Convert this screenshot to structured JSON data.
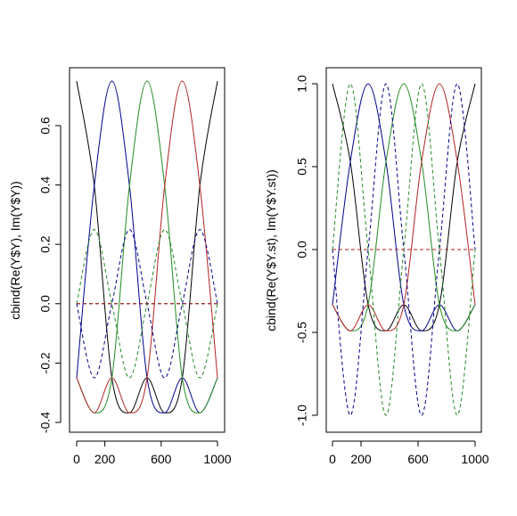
{
  "chart_data": [
    {
      "type": "line",
      "ylabel": "cbind(Re(Y$Y), Im(Y$Y))",
      "xlim": [
        0,
        1000
      ],
      "ylim": [
        -0.4,
        0.75
      ],
      "xticks": [
        0,
        200,
        600,
        1000
      ],
      "yticks": [
        -0.4,
        -0.2,
        0.0,
        0.2,
        0.4,
        0.6
      ],
      "ytick_labels": [
        "-0.4",
        "-0.2",
        "0.0",
        "0.2",
        "0.4",
        "0.6"
      ],
      "grid": false,
      "series": [
        {
          "color": "#000000",
          "linestyle": "solid",
          "points": [
            [
              0,
              0.75
            ],
            [
              125,
              0.3975
            ],
            [
              250,
              -0.25
            ],
            [
              375,
              -0.3675
            ],
            [
              500,
              -0.25
            ],
            [
              625,
              -0.3675
            ],
            [
              750,
              -0.25
            ],
            [
              875,
              0.3975
            ],
            [
              1000,
              0.75
            ]
          ]
        },
        {
          "color": "#00008b",
          "linestyle": "solid",
          "points": [
            [
              0,
              -0.25
            ],
            [
              125,
              0.3975
            ],
            [
              250,
              0.75
            ],
            [
              375,
              0.3975
            ],
            [
              500,
              -0.25
            ],
            [
              625,
              -0.3675
            ],
            [
              750,
              -0.25
            ],
            [
              875,
              -0.3675
            ],
            [
              1000,
              -0.25
            ]
          ]
        },
        {
          "color": "#228b22",
          "linestyle": "solid",
          "points": [
            [
              0,
              -0.25
            ],
            [
              125,
              -0.3675
            ],
            [
              250,
              -0.25
            ],
            [
              375,
              0.3975
            ],
            [
              500,
              0.75
            ],
            [
              625,
              0.3975
            ],
            [
              750,
              -0.25
            ],
            [
              875,
              -0.3675
            ],
            [
              1000,
              -0.25
            ]
          ]
        },
        {
          "color": "#b22222",
          "linestyle": "solid",
          "points": [
            [
              0,
              -0.25
            ],
            [
              125,
              -0.3675
            ],
            [
              250,
              -0.25
            ],
            [
              375,
              -0.3675
            ],
            [
              500,
              -0.25
            ],
            [
              625,
              0.3975
            ],
            [
              750,
              0.75
            ],
            [
              875,
              0.3975
            ],
            [
              1000,
              -0.25
            ]
          ]
        },
        {
          "color": "#000000",
          "linestyle": "dashed",
          "points": [
            [
              0,
              0
            ],
            [
              125,
              0
            ],
            [
              250,
              0
            ],
            [
              375,
              0
            ],
            [
              500,
              0
            ],
            [
              625,
              0
            ],
            [
              750,
              0
            ],
            [
              875,
              0
            ],
            [
              1000,
              0
            ]
          ]
        },
        {
          "color": "#00008b",
          "linestyle": "dashed",
          "points": [
            [
              0,
              0
            ],
            [
              125,
              -0.25
            ],
            [
              250,
              0
            ],
            [
              375,
              0.25
            ],
            [
              500,
              0
            ],
            [
              625,
              -0.25
            ],
            [
              750,
              0
            ],
            [
              875,
              0.25
            ],
            [
              1000,
              0
            ]
          ]
        },
        {
          "color": "#228b22",
          "linestyle": "dashed",
          "points": [
            [
              0,
              0
            ],
            [
              125,
              0.25
            ],
            [
              250,
              0
            ],
            [
              375,
              -0.25
            ],
            [
              500,
              0
            ],
            [
              625,
              0.25
            ],
            [
              750,
              0
            ],
            [
              875,
              -0.25
            ],
            [
              1000,
              0
            ]
          ]
        },
        {
          "color": "#b22222",
          "linestyle": "dashed",
          "points": [
            [
              0,
              0
            ],
            [
              125,
              0
            ],
            [
              250,
              0
            ],
            [
              375,
              0
            ],
            [
              500,
              0
            ],
            [
              625,
              0
            ],
            [
              750,
              0
            ],
            [
              875,
              0
            ],
            [
              1000,
              0
            ]
          ]
        }
      ]
    },
    {
      "type": "line",
      "ylabel": "cbind(Re(Y$Y.st), Im(Y$Y.st))",
      "xlim": [
        0,
        1000
      ],
      "ylim": [
        -1.0,
        1.0
      ],
      "xticks": [
        0,
        200,
        600,
        1000
      ],
      "yticks": [
        -1.0,
        -0.5,
        0.0,
        0.5,
        1.0
      ],
      "ytick_labels": [
        "-1.0",
        "-0.5",
        "0.0",
        "0.5",
        "1.0"
      ],
      "grid": false,
      "series": [
        {
          "color": "#000000",
          "linestyle": "solid",
          "points": [
            [
              0,
              1
            ],
            [
              125,
              0.53
            ],
            [
              250,
              -0.333
            ],
            [
              375,
              -0.49
            ],
            [
              500,
              -0.333
            ],
            [
              625,
              -0.49
            ],
            [
              750,
              -0.333
            ],
            [
              875,
              0.53
            ],
            [
              1000,
              1
            ]
          ]
        },
        {
          "color": "#00008b",
          "linestyle": "solid",
          "points": [
            [
              0,
              -0.333
            ],
            [
              125,
              0.53
            ],
            [
              250,
              1
            ],
            [
              375,
              0.53
            ],
            [
              500,
              -0.333
            ],
            [
              625,
              -0.49
            ],
            [
              750,
              -0.333
            ],
            [
              875,
              -0.49
            ],
            [
              1000,
              -0.333
            ]
          ]
        },
        {
          "color": "#228b22",
          "linestyle": "solid",
          "points": [
            [
              0,
              -0.333
            ],
            [
              125,
              -0.49
            ],
            [
              250,
              -0.333
            ],
            [
              375,
              0.53
            ],
            [
              500,
              1
            ],
            [
              625,
              0.53
            ],
            [
              750,
              -0.333
            ],
            [
              875,
              -0.49
            ],
            [
              1000,
              -0.333
            ]
          ]
        },
        {
          "color": "#b22222",
          "linestyle": "solid",
          "points": [
            [
              0,
              -0.333
            ],
            [
              125,
              -0.49
            ],
            [
              250,
              -0.333
            ],
            [
              375,
              -0.49
            ],
            [
              500,
              -0.333
            ],
            [
              625,
              0.53
            ],
            [
              750,
              1
            ],
            [
              875,
              0.53
            ],
            [
              1000,
              -0.333
            ]
          ]
        },
        {
          "color": "#000000",
          "linestyle": "dashed",
          "points": [
            [
              0,
              0
            ],
            [
              125,
              0
            ],
            [
              250,
              0
            ],
            [
              375,
              0
            ],
            [
              500,
              0
            ],
            [
              625,
              0
            ],
            [
              750,
              0
            ],
            [
              875,
              0
            ],
            [
              1000,
              0
            ]
          ]
        },
        {
          "color": "#00008b",
          "linestyle": "dashed",
          "points": [
            [
              0,
              0
            ],
            [
              125,
              -1
            ],
            [
              250,
              0
            ],
            [
              375,
              1
            ],
            [
              500,
              0
            ],
            [
              625,
              -1
            ],
            [
              750,
              0
            ],
            [
              875,
              1
            ],
            [
              1000,
              0
            ]
          ]
        },
        {
          "color": "#228b22",
          "linestyle": "dashed",
          "points": [
            [
              0,
              0
            ],
            [
              125,
              1
            ],
            [
              250,
              0
            ],
            [
              375,
              -1
            ],
            [
              500,
              0
            ],
            [
              625,
              1
            ],
            [
              750,
              0
            ],
            [
              875,
              -1
            ],
            [
              1000,
              0
            ]
          ]
        },
        {
          "color": "#b22222",
          "linestyle": "dashed",
          "points": [
            [
              0,
              0
            ],
            [
              125,
              0
            ],
            [
              250,
              0
            ],
            [
              375,
              0
            ],
            [
              500,
              0
            ],
            [
              625,
              0
            ],
            [
              750,
              0
            ],
            [
              875,
              0
            ],
            [
              1000,
              0
            ]
          ]
        }
      ]
    }
  ]
}
